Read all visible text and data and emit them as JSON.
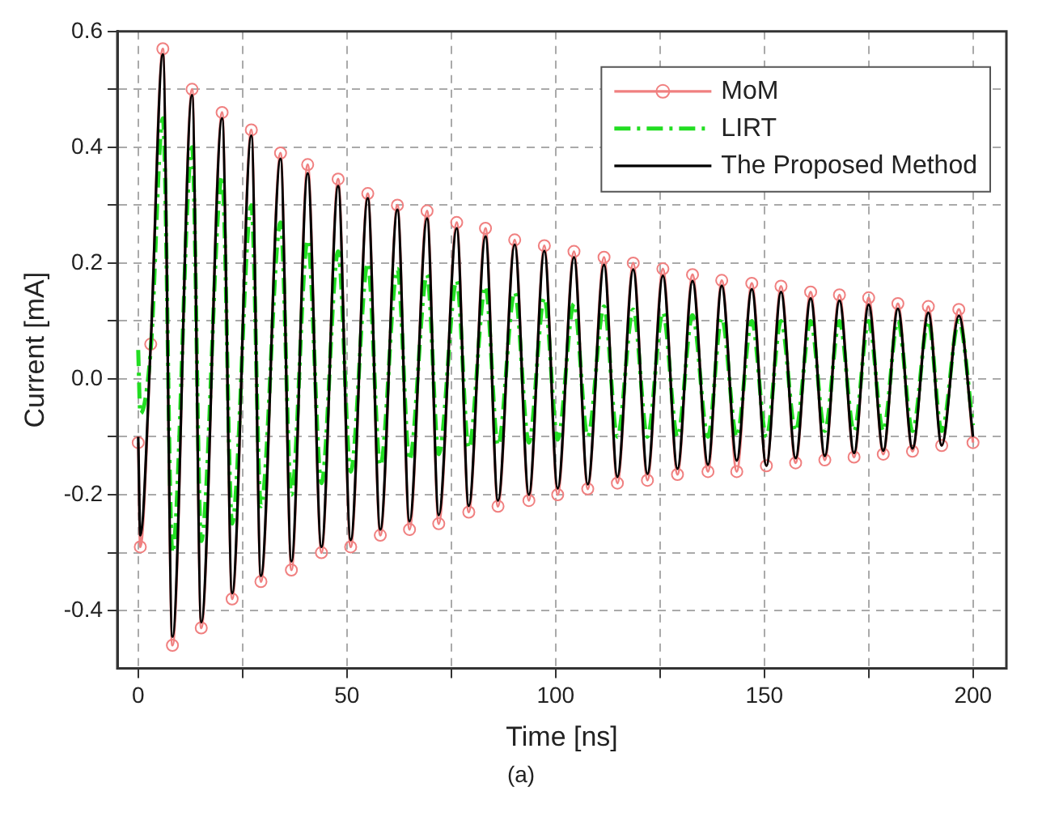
{
  "chart_data": {
    "type": "line",
    "xlabel": "Time [ns]",
    "ylabel": "Current [mA]",
    "annotations": [
      "(a)"
    ],
    "xlim": [
      -5,
      208
    ],
    "ylim": [
      -0.5,
      0.6
    ],
    "xticks": [
      0,
      {
        "value": 25,
        "label": null
      },
      50,
      {
        "value": 75,
        "label": null
      },
      100,
      {
        "value": 125,
        "label": null
      },
      150,
      {
        "value": 175,
        "label": null
      },
      200
    ],
    "yticks": [
      -0.4,
      {
        "value": -0.3,
        "label": null
      },
      -0.2,
      {
        "value": -0.1,
        "label": null
      },
      {
        "value": 0,
        "label": "0.0"
      },
      {
        "value": 0.1,
        "label": null
      },
      0.2,
      {
        "value": 0.3,
        "label": null
      },
      0.4,
      {
        "value": 0.5,
        "label": null
      },
      0.6
    ],
    "grid": true,
    "legend": "top right",
    "x": [
      0,
      0.5,
      3,
      5.9,
      8.2,
      12.9,
      15.1,
      20.1,
      22.5,
      27.1,
      29.4,
      34.1,
      36.7,
      40.6,
      43.9,
      47.9,
      50.9,
      55.0,
      58.0,
      62.1,
      65.0,
      69.2,
      72.0,
      76.3,
      79.2,
      83.2,
      86.2,
      90.2,
      93.6,
      97.3,
      100.5,
      104.4,
      107.7,
      111.6,
      114.8,
      118.6,
      122.0,
      125.7,
      129.2,
      132.8,
      136.5,
      139.8,
      143.4,
      147,
      150.5,
      154,
      157.5,
      161.1,
      164.5,
      168,
      171.5,
      175,
      178.5,
      182,
      185.5,
      189.3,
      192.5,
      196.6,
      200
    ],
    "series": [
      {
        "name": "MoM",
        "color": "#f08080",
        "marker": "circle",
        "line_style": "solid",
        "values": [
          -0.11,
          -0.29,
          0.06,
          0.57,
          -0.46,
          0.5,
          -0.43,
          0.46,
          -0.38,
          0.43,
          -0.35,
          0.39,
          -0.33,
          0.37,
          -0.3,
          0.345,
          -0.29,
          0.32,
          -0.27,
          0.3,
          -0.26,
          0.29,
          -0.25,
          0.27,
          -0.23,
          0.26,
          -0.22,
          0.24,
          -0.21,
          0.23,
          -0.2,
          0.22,
          -0.19,
          0.21,
          -0.18,
          0.2,
          -0.175,
          0.19,
          -0.165,
          0.18,
          -0.16,
          0.17,
          -0.16,
          0.165,
          -0.15,
          0.16,
          -0.145,
          0.15,
          -0.14,
          0.145,
          -0.135,
          0.14,
          -0.13,
          0.13,
          -0.125,
          0.125,
          -0.115,
          0.12,
          -0.11
        ]
      },
      {
        "name": "LIRT",
        "color": "#22dd22",
        "marker": "none",
        "line_style": "dashdot",
        "values": [
          0.05,
          -0.06,
          0.05,
          0.45,
          -0.3,
          0.4,
          -0.28,
          0.35,
          -0.25,
          0.3,
          -0.22,
          0.27,
          -0.2,
          0.24,
          -0.18,
          0.22,
          -0.16,
          0.2,
          -0.15,
          0.19,
          -0.14,
          0.18,
          -0.13,
          0.17,
          -0.12,
          0.16,
          -0.115,
          0.15,
          -0.11,
          0.14,
          -0.105,
          0.13,
          -0.1,
          0.125,
          -0.1,
          0.12,
          -0.1,
          0.115,
          -0.1,
          0.11,
          -0.1,
          0.105,
          -0.1,
          0.1,
          -0.1,
          0.1,
          -0.09,
          0.1,
          -0.09,
          0.1,
          -0.09,
          0.1,
          -0.09,
          0.1,
          -0.09,
          0.1,
          -0.09,
          0.1,
          -0.08
        ]
      },
      {
        "name": "The Proposed Method",
        "color": "#000000",
        "marker": "none",
        "line_style": "solid",
        "values": [
          -0.1,
          -0.27,
          0.06,
          0.56,
          -0.445,
          0.49,
          -0.42,
          0.45,
          -0.37,
          0.42,
          -0.34,
          0.38,
          -0.315,
          0.355,
          -0.29,
          0.333,
          -0.278,
          0.312,
          -0.26,
          0.292,
          -0.246,
          0.277,
          -0.235,
          0.26,
          -0.219,
          0.246,
          -0.21,
          0.232,
          -0.2,
          0.221,
          -0.189,
          0.21,
          -0.182,
          0.197,
          -0.169,
          0.189,
          -0.164,
          0.178,
          -0.155,
          0.169,
          -0.148,
          0.161,
          -0.141,
          0.155,
          -0.15,
          0.15,
          -0.137,
          0.139,
          -0.133,
          0.135,
          -0.128,
          0.128,
          -0.124,
          0.121,
          -0.12,
          0.114,
          -0.115,
          0.109,
          -0.1
        ]
      }
    ]
  }
}
